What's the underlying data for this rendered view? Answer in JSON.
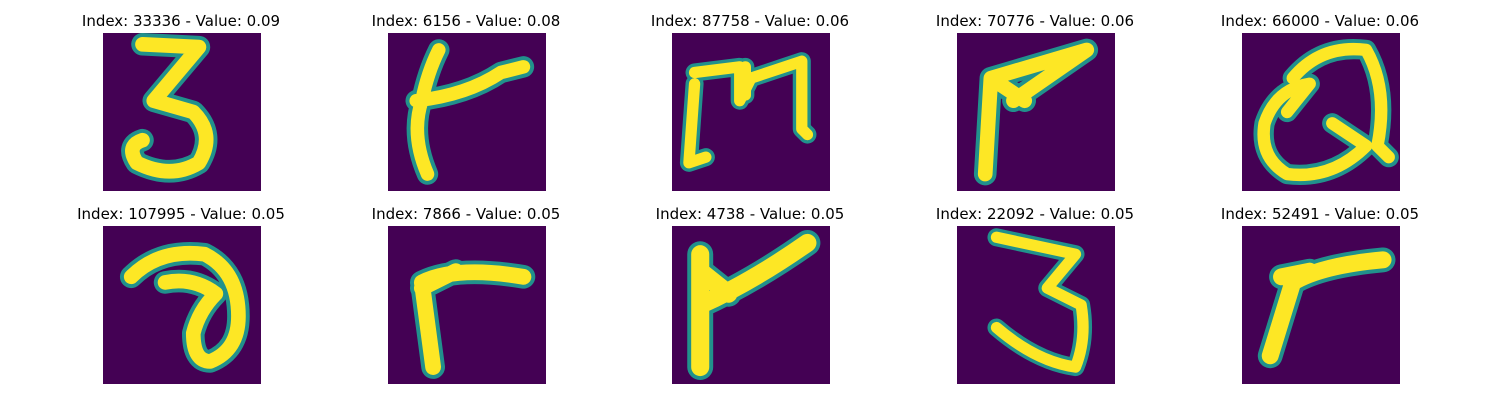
{
  "colormap": {
    "background": "#440154",
    "edge": "#21918c",
    "mid": "#5ec962",
    "stroke": "#fde725"
  },
  "panels": [
    {
      "title": "Index: 33336 - Value: 0.09"
    },
    {
      "title": "Index: 6156 - Value: 0.08"
    },
    {
      "title": "Index: 87758 - Value: 0.06"
    },
    {
      "title": "Index: 70776 - Value: 0.06"
    },
    {
      "title": "Index: 66000 - Value: 0.06"
    },
    {
      "title": "Index: 107995 - Value: 0.05"
    },
    {
      "title": "Index: 7866 - Value: 0.05"
    },
    {
      "title": "Index: 4738 - Value: 0.05"
    },
    {
      "title": "Index: 22092 - Value: 0.05"
    },
    {
      "title": "Index: 52491 - Value: 0.05"
    }
  ]
}
